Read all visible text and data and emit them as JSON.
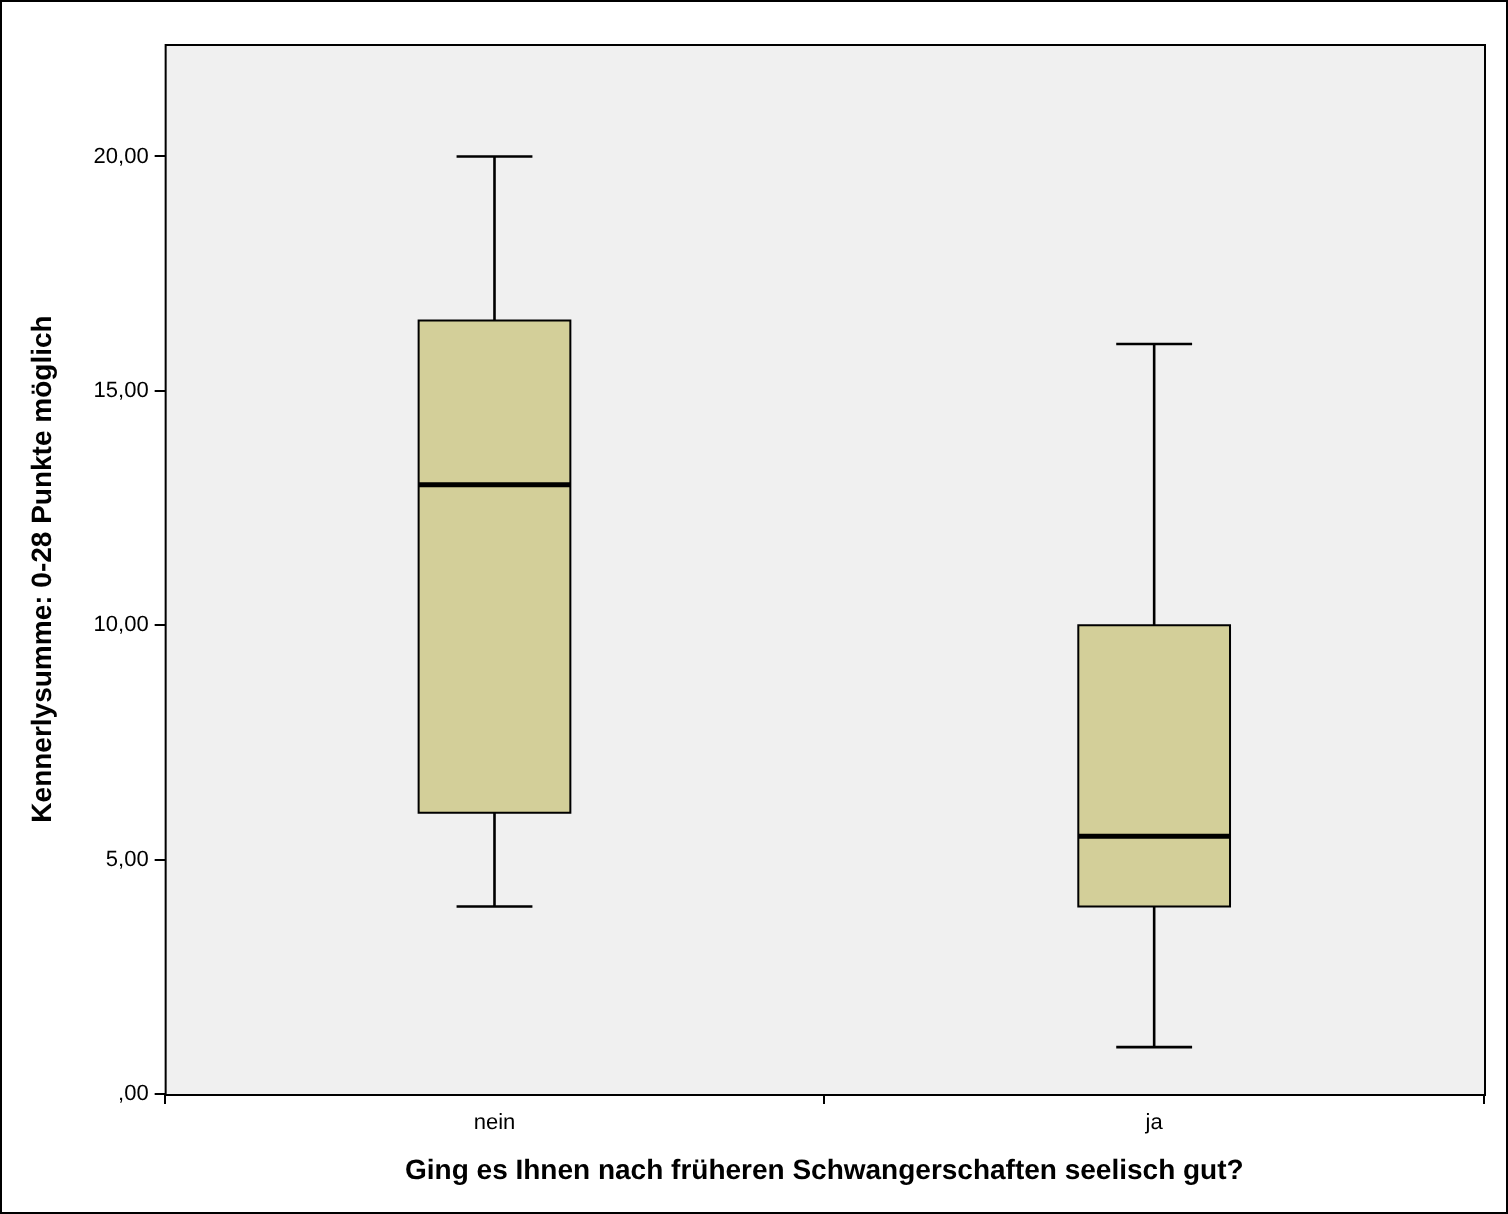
{
  "chart_data": {
    "type": "box",
    "xlabel": "Ging es Ihnen nach früheren Schwangerschaften seelisch gut?",
    "ylabel": "Kennerlysumme: 0-28 Punkte möglich",
    "categories": [
      "nein",
      "ja"
    ],
    "color": "#d3cf99",
    "boxes": [
      {
        "low": 4,
        "median": 13,
        "q1": 6,
        "q3": 16.5,
        "high": 20
      },
      {
        "low": 1,
        "q1": 4,
        "median": 5.5,
        "q3": 10,
        "high": 16
      }
    ],
    "ylim": [
      0,
      22.4
    ],
    "yticks": [
      {
        "value": 0,
        "label": ",00"
      },
      {
        "value": 5,
        "label": "5,00"
      },
      {
        "value": 10,
        "label": "10,00"
      },
      {
        "value": 15,
        "label": "15,00"
      },
      {
        "value": 20,
        "label": "20,00"
      }
    ],
    "grid": false
  }
}
